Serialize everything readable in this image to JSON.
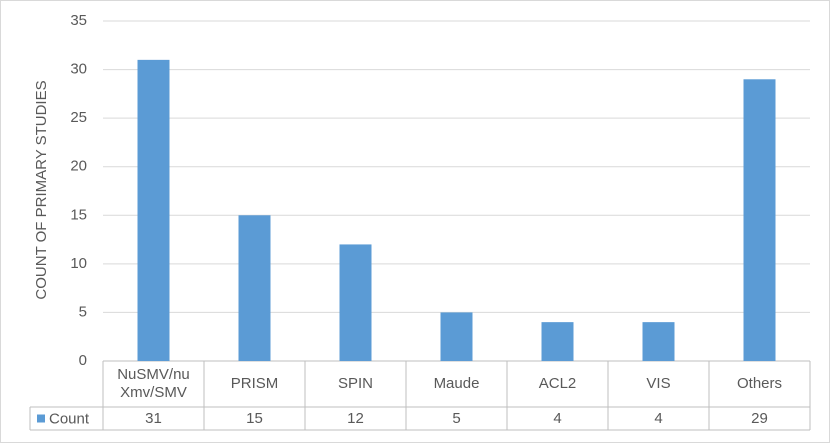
{
  "chart_data": {
    "type": "bar",
    "y_label": "COUNT OF PRIMARY STUDIES",
    "categories": [
      "NuSMV/nuXmv/SMV",
      "PRISM",
      "SPIN",
      "Maude",
      "ACL2",
      "VIS",
      "Others"
    ],
    "series": [
      {
        "name": "Count",
        "color": "#5b9bd5",
        "values": [
          31,
          15,
          12,
          5,
          4,
          4,
          29
        ]
      }
    ],
    "ylim": [
      0,
      35
    ],
    "yticks": [
      0,
      5,
      10,
      15,
      20,
      25,
      30,
      35
    ],
    "grid": true
  }
}
